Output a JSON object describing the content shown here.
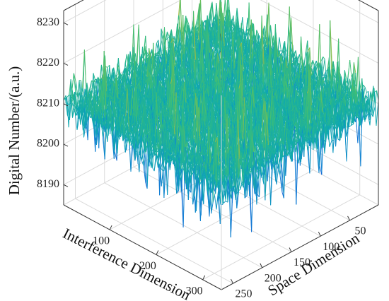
{
  "chart_data": {
    "type": "surface",
    "title": "",
    "zlabel": "Digital Number/(a.u.)",
    "xlabel": "Interference Dimension",
    "ylabel": "Space Dimension",
    "x_ticks": [
      100,
      200,
      300
    ],
    "y_ticks": [
      50,
      100,
      150,
      200,
      250
    ],
    "z_ticks": [
      8190,
      8200,
      8210,
      8220,
      8230
    ],
    "xlim": [
      1,
      340
    ],
    "ylim": [
      1,
      270
    ],
    "zlim": [
      8185,
      8233
    ],
    "grid": true,
    "colormap": "parula",
    "surface_stats": {
      "mean": 8210,
      "min": 8192,
      "max": 8230,
      "noise": "random"
    }
  }
}
